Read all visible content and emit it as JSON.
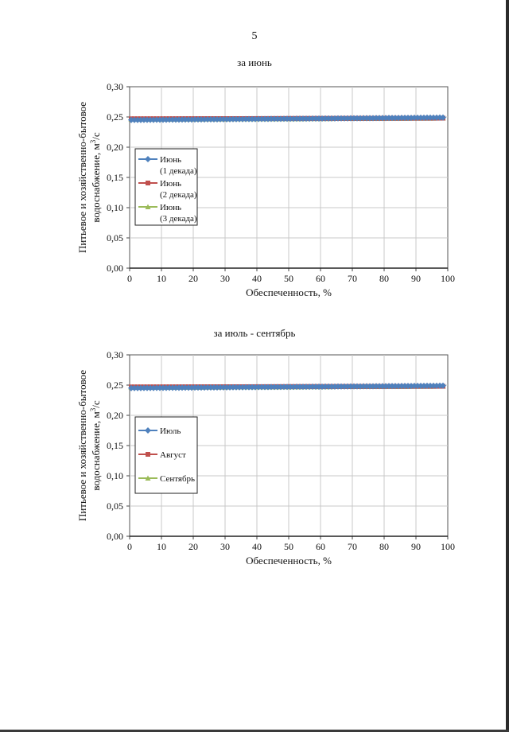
{
  "page_number": "5",
  "colors": {
    "series1": "#4f81bd",
    "series2": "#c0504d",
    "series3": "#9bbb59",
    "grid": "#c8c8c8"
  },
  "chart_data": [
    {
      "type": "line",
      "title": "за июнь",
      "xlabel": "Обеспеченность, %",
      "ylabel_line1": "Питьевое и хозяйственно-бытовое",
      "ylabel_line2": "водоснабжение, м",
      "ylabel_sup": "3",
      "ylabel_tail": "/с",
      "xlim": [
        0,
        100
      ],
      "ylim": [
        0,
        0.3
      ],
      "xticks": [
        "0",
        "10",
        "20",
        "30",
        "40",
        "50",
        "60",
        "70",
        "80",
        "90",
        "100"
      ],
      "yticks": [
        "0,00",
        "0,05",
        "0,10",
        "0,15",
        "0,20",
        "0,25",
        "0,30"
      ],
      "grid": true,
      "legend_position": "left-middle",
      "x_start": 0.5,
      "x_end": 98.5,
      "x_step": 1,
      "series": [
        {
          "name_lines": [
            "Июнь",
            "(1 декада)"
          ],
          "color": "#4f81bd",
          "marker": "diamond",
          "y_start": 0.245,
          "y_end": 0.249
        },
        {
          "name_lines": [
            "Июнь",
            "(2 декада)"
          ],
          "color": "#c0504d",
          "marker": "square",
          "y_start": 0.247,
          "y_end": 0.248
        },
        {
          "name_lines": [
            "Июнь",
            "(3 декада)"
          ],
          "color": "#9bbb59",
          "marker": "triangle",
          "y_start": 0.246,
          "y_end": 0.248
        }
      ]
    },
    {
      "type": "line",
      "title": "за июль - сентябрь",
      "xlabel": "Обеспеченность, %",
      "ylabel_line1": "Питьевое и хозяйственно-бытовое",
      "ylabel_line2": "водоснабжение, м",
      "ylabel_sup": "3",
      "ylabel_tail": "/с",
      "xlim": [
        0,
        100
      ],
      "ylim": [
        0,
        0.3
      ],
      "xticks": [
        "0",
        "10",
        "20",
        "30",
        "40",
        "50",
        "60",
        "70",
        "80",
        "90",
        "100"
      ],
      "yticks": [
        "0,00",
        "0,05",
        "0,10",
        "0,15",
        "0,20",
        "0,25",
        "0,30"
      ],
      "grid": true,
      "legend_position": "left-middle",
      "x_start": 0.5,
      "x_end": 98.5,
      "x_step": 1,
      "series": [
        {
          "name_lines": [
            "Июль"
          ],
          "color": "#4f81bd",
          "marker": "diamond",
          "y_start": 0.245,
          "y_end": 0.249
        },
        {
          "name_lines": [
            "Август"
          ],
          "color": "#c0504d",
          "marker": "square",
          "y_start": 0.247,
          "y_end": 0.248
        },
        {
          "name_lines": [
            "Сентябрь"
          ],
          "color": "#9bbb59",
          "marker": "triangle",
          "y_start": 0.246,
          "y_end": 0.248
        }
      ]
    }
  ]
}
